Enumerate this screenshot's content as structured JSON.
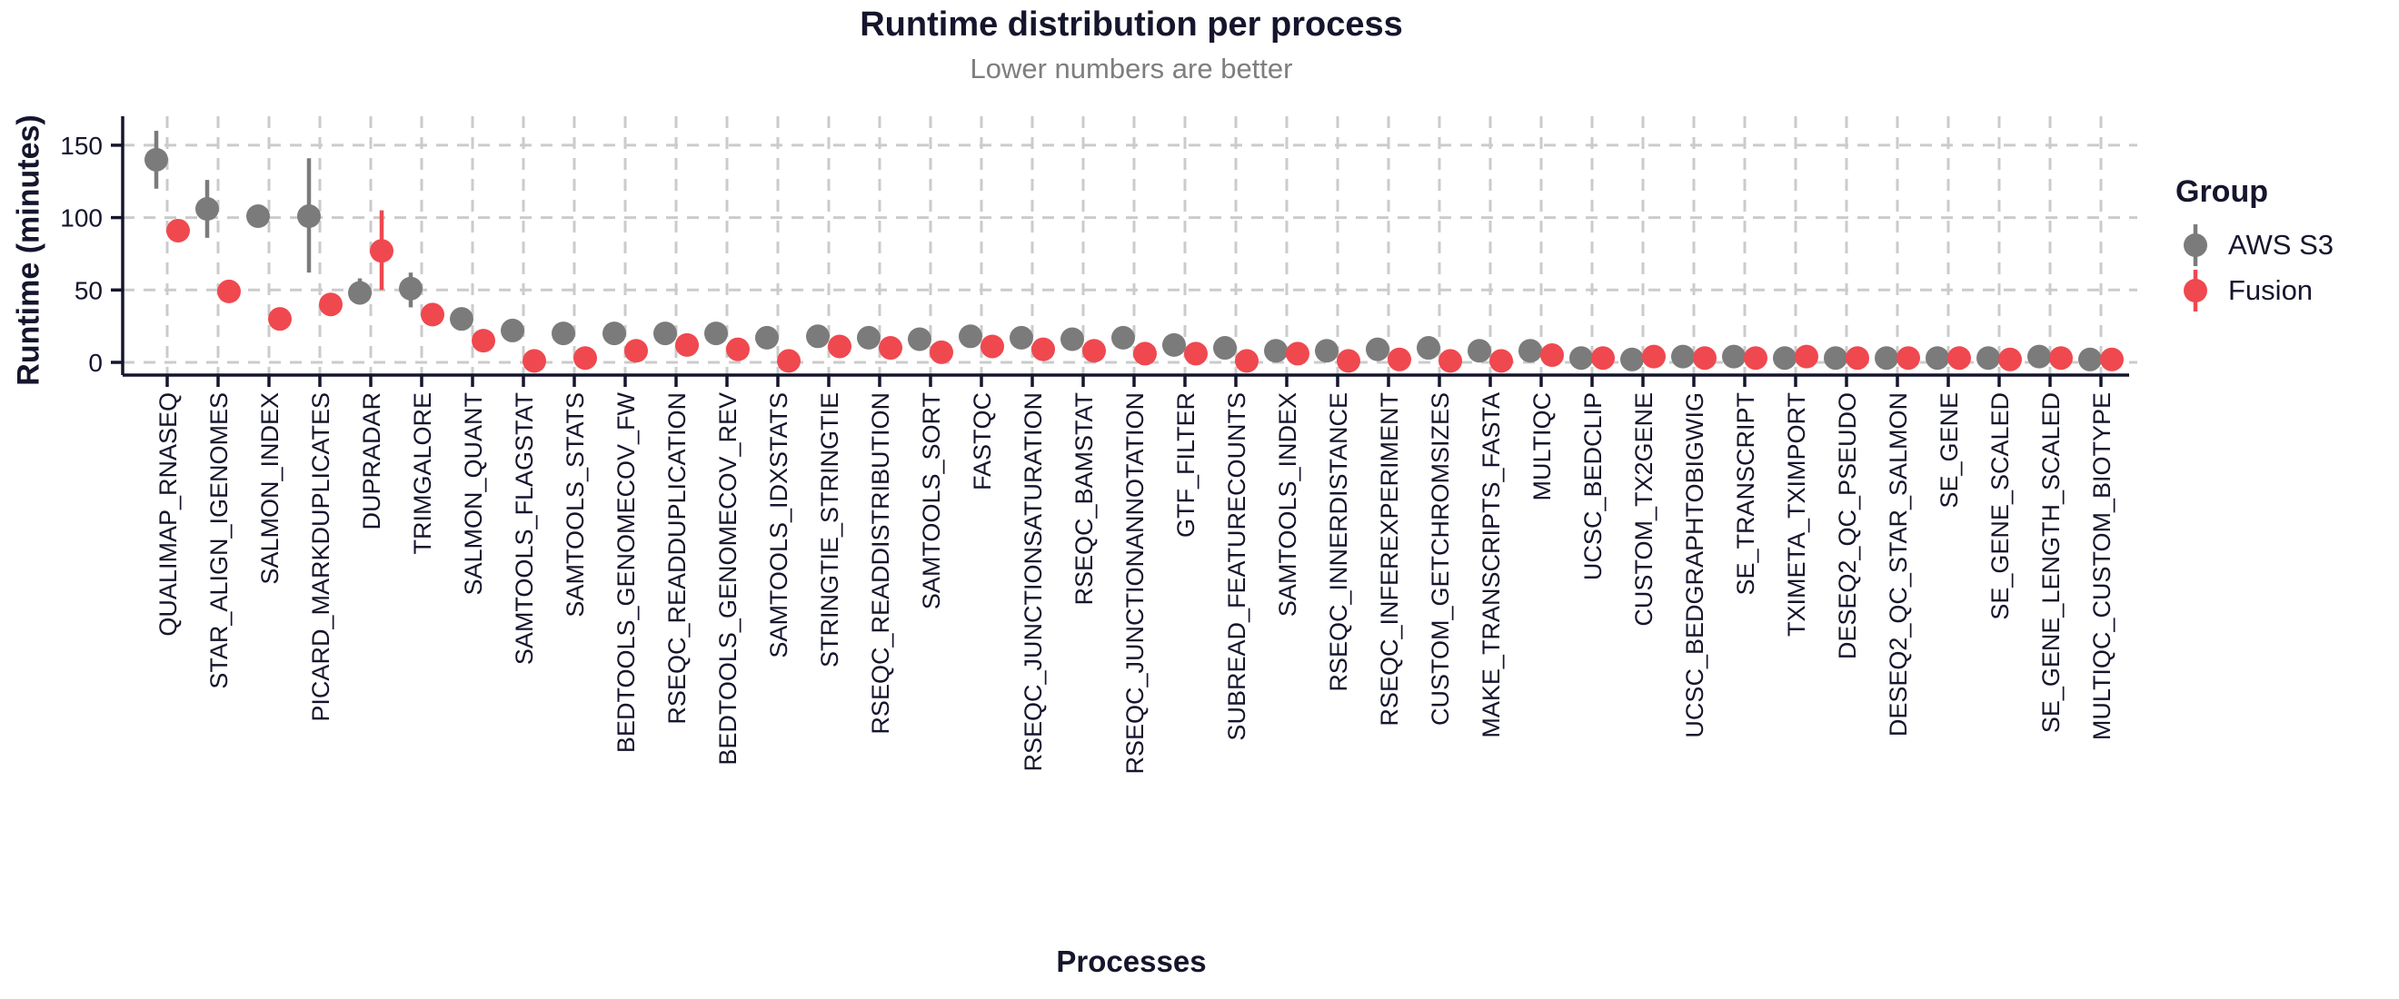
{
  "title": "Runtime distribution per process",
  "subtitle": "Lower numbers are better",
  "chart_data": {
    "type": "pointrange",
    "title": "Runtime distribution per process",
    "subtitle": "Lower numbers are better",
    "xlabel": "Processes",
    "ylabel": "Runtime (minutes)",
    "ylim": [
      -10,
      170
    ],
    "yticks": [
      0,
      50,
      100,
      150
    ],
    "grid": "dashed-both-axes",
    "legend": {
      "title": "Group",
      "position": "right",
      "entries": [
        {
          "label": "AWS S3",
          "color": "#7b7b7b"
        },
        {
          "label": "Fusion",
          "color": "#f0484f"
        }
      ]
    },
    "categories": [
      "QUALIMAP_RNASEQ",
      "STAR_ALIGN_IGENOMES",
      "SALMON_INDEX",
      "PICARD_MARKDUPLICATES",
      "DUPRADAR",
      "TRIMGALORE",
      "SALMON_QUANT",
      "SAMTOOLS_FLAGSTAT",
      "SAMTOOLS_STATS",
      "BEDTOOLS_GENOMECOV_FW",
      "RSEQC_READDUPLICATION",
      "BEDTOOLS_GENOMECOV_REV",
      "SAMTOOLS_IDXSTATS",
      "STRINGTIE_STRINGTIE",
      "RSEQC_READDISTRIBUTION",
      "SAMTOOLS_SORT",
      "FASTQC",
      "RSEQC_JUNCTIONSATURATION",
      "RSEQC_BAMSTAT",
      "RSEQC_JUNCTIONANNOTATION",
      "GTF_FILTER",
      "SUBREAD_FEATURECOUNTS",
      "SAMTOOLS_INDEX",
      "RSEQC_INNERDISTANCE",
      "RSEQC_INFEREXPERIMENT",
      "CUSTOM_GETCHROMSIZES",
      "MAKE_TRANSCRIPTS_FASTA",
      "MULTIQC",
      "UCSC_BEDCLIP",
      "CUSTOM_TX2GENE",
      "UCSC_BEDGRAPHTOBIGWIG",
      "SE_TRANSCRIPT",
      "TXIMETA_TXIMPORT",
      "DESEQ2_QC_PSEUDO",
      "DESEQ2_QC_STAR_SALMON",
      "SE_GENE",
      "SE_GENE_SCALED",
      "SE_GENE_LENGTH_SCALED",
      "MULTIQC_CUSTOM_BIOTYPE"
    ],
    "series": [
      {
        "name": "AWS S3",
        "color": "#7b7b7b",
        "values": [
          140,
          106,
          101,
          101,
          48,
          51,
          30,
          22,
          20,
          20,
          20,
          20,
          17,
          18,
          17,
          16,
          18,
          17,
          16,
          17,
          12,
          10,
          8,
          8,
          9,
          10,
          8,
          8,
          3,
          2,
          4,
          4,
          3,
          3,
          3,
          3,
          3,
          4,
          2
        ],
        "err_low": [
          120,
          86,
          null,
          62,
          40,
          38,
          null,
          null,
          null,
          null,
          null,
          null,
          null,
          null,
          null,
          11,
          null,
          null,
          null,
          null,
          null,
          null,
          null,
          null,
          null,
          null,
          null,
          null,
          null,
          null,
          null,
          null,
          null,
          null,
          null,
          null,
          null,
          null,
          null
        ],
        "err_high": [
          160,
          126,
          null,
          141,
          58,
          62,
          null,
          null,
          null,
          null,
          null,
          null,
          null,
          null,
          null,
          22,
          null,
          null,
          null,
          null,
          null,
          null,
          null,
          null,
          null,
          null,
          null,
          null,
          null,
          null,
          null,
          null,
          null,
          null,
          null,
          null,
          null,
          null,
          null
        ]
      },
      {
        "name": "Fusion",
        "color": "#f0484f",
        "values": [
          91,
          49,
          30,
          40,
          77,
          33,
          15,
          1,
          3,
          8,
          12,
          9,
          1,
          11,
          10,
          7,
          11,
          9,
          8,
          6,
          6,
          1,
          6,
          1,
          2,
          1,
          1,
          5,
          3,
          4,
          3,
          3,
          4,
          3,
          3,
          3,
          2,
          3,
          2
        ],
        "err_low": [
          84,
          null,
          null,
          null,
          50,
          null,
          null,
          null,
          null,
          null,
          null,
          null,
          null,
          null,
          null,
          null,
          null,
          null,
          null,
          null,
          null,
          null,
          null,
          null,
          null,
          null,
          null,
          null,
          null,
          null,
          null,
          null,
          null,
          null,
          null,
          null,
          null,
          null,
          null
        ],
        "err_high": [
          98,
          null,
          null,
          null,
          105,
          null,
          null,
          null,
          null,
          null,
          null,
          null,
          null,
          null,
          null,
          null,
          null,
          null,
          null,
          null,
          null,
          null,
          null,
          null,
          null,
          null,
          null,
          null,
          null,
          null,
          null,
          null,
          null,
          null,
          null,
          null,
          null,
          null,
          null
        ]
      }
    ],
    "colors": {
      "text": "#15152d",
      "subtitle_text": "#7e7e7e",
      "grid": "#cbcbcb",
      "axis": "#15152d",
      "background": "#ffffff"
    }
  }
}
